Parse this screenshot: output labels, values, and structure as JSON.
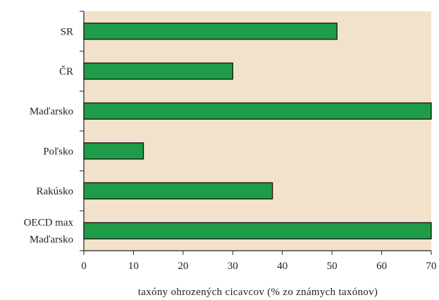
{
  "chart_data": {
    "type": "bar",
    "orientation": "horizontal",
    "categories": [
      [
        "SR"
      ],
      [
        "ČR"
      ],
      [
        "Maďarsko"
      ],
      [
        "Poľsko"
      ],
      [
        "Rakúsko"
      ],
      [
        "OECD max",
        "Maďarsko"
      ]
    ],
    "values": [
      51,
      30,
      70,
      12,
      38,
      70
    ],
    "xlabel": "taxóny ohrozených cicavcov (% zo známych taxónov)",
    "ylabel": "",
    "title": "",
    "xlim": [
      0,
      70
    ],
    "xticks": [
      0,
      10,
      20,
      30,
      40,
      50,
      60,
      70
    ],
    "grid": false,
    "colors": {
      "plot_background": "#f3e2cb",
      "bar_fill": "#1e9c4a",
      "bar_stroke": "#111111",
      "axis": "#222222"
    }
  }
}
